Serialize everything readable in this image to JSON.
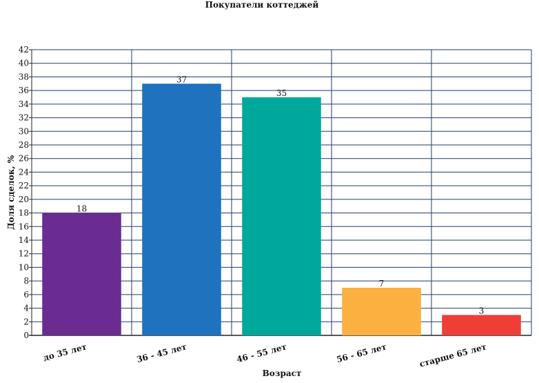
{
  "chart_data": {
    "type": "bar",
    "title": "Покупатели коттеджей",
    "xlabel": "Возраст",
    "ylabel": "Доля сделок, %",
    "categories": [
      "до 35 лет",
      "36 - 45 лет",
      "46 - 55 лет",
      "56 - 65 лет",
      "старше 65 лет"
    ],
    "values": [
      18,
      37,
      35,
      7,
      3
    ],
    "data_labels": [
      "18",
      "37",
      "35",
      "7",
      "3"
    ],
    "colors": [
      "#6a2c91",
      "#1f72bd",
      "#00a89c",
      "#fbb040",
      "#ee3e36"
    ],
    "ylim": [
      0,
      42
    ],
    "yticks": [
      "0",
      "2",
      "4",
      "6",
      "8",
      "10",
      "12",
      "14",
      "16",
      "18",
      "20",
      "22",
      "24",
      "26",
      "28",
      "30",
      "32",
      "34",
      "36",
      "38",
      "40",
      "42"
    ],
    "grid": true,
    "grid_color": "#1f3a6e",
    "legend": "none"
  }
}
